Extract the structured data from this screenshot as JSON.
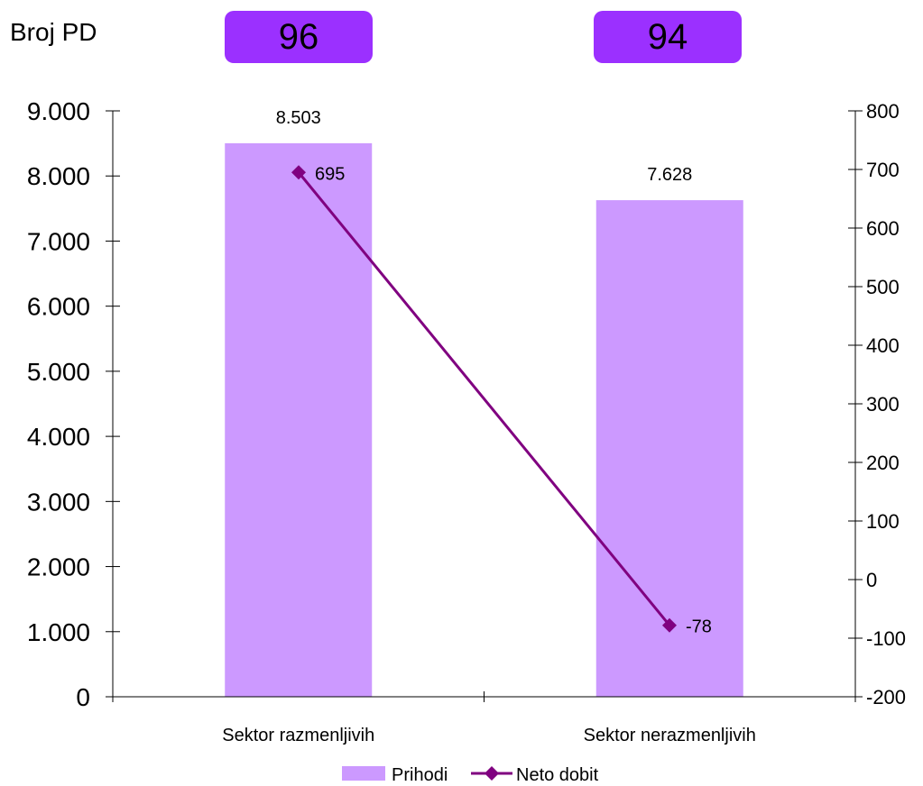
{
  "header": {
    "label": "Broj PD",
    "badges": [
      "96",
      "94"
    ]
  },
  "colors": {
    "bar": "#cc99ff",
    "line": "#800080",
    "badge": "#9b30ff"
  },
  "chart_data": {
    "type": "bar",
    "categories": [
      "Sektor razmenljivih",
      "Sektor nerazmenljivih"
    ],
    "series": [
      {
        "name": "Prihodi",
        "type": "bar",
        "axis": "left",
        "values": [
          8503,
          7628
        ],
        "labels": [
          "8.503",
          "7.628"
        ]
      },
      {
        "name": "Neto dobit",
        "type": "line",
        "axis": "right",
        "values": [
          695,
          -78
        ],
        "labels": [
          "695",
          "-78"
        ]
      }
    ],
    "y_left": {
      "min": 0,
      "max": 9000,
      "ticks": [
        0,
        1000,
        2000,
        3000,
        4000,
        5000,
        6000,
        7000,
        8000,
        9000
      ],
      "tick_labels": [
        "0",
        "1.000",
        "2.000",
        "3.000",
        "4.000",
        "5.000",
        "6.000",
        "7.000",
        "8.000",
        "9.000"
      ]
    },
    "y_right": {
      "min": -200,
      "max": 800,
      "ticks": [
        -200,
        -100,
        0,
        100,
        200,
        300,
        400,
        500,
        600,
        700,
        800
      ],
      "tick_labels": [
        "-200",
        "-100",
        "0",
        "100",
        "200",
        "300",
        "400",
        "500",
        "600",
        "700",
        "800"
      ]
    },
    "legend": {
      "position": "bottom",
      "entries": [
        "Prihodi",
        "Neto dobit"
      ]
    },
    "grid": false
  }
}
